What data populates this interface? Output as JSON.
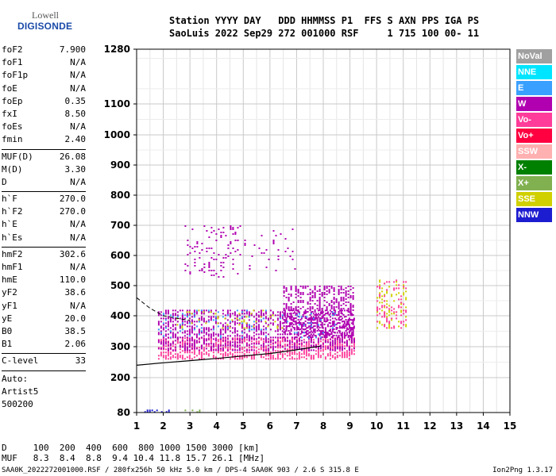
{
  "logo": {
    "line1": "Lowell",
    "line2": "DIGISONDE"
  },
  "header": {
    "labels": "Station YYYY DAY   DDD HHMMSS P1  FFS S AXN PPS IGA PS",
    "values": "SaoLuis 2022 Sep29 272 001000 RSF     1 715 100 00- 11"
  },
  "params": {
    "group1": [
      {
        "k": "foF2",
        "v": "7.900"
      },
      {
        "k": "foF1",
        "v": "N/A"
      },
      {
        "k": "foF1p",
        "v": "N/A"
      },
      {
        "k": "foE",
        "v": "N/A"
      },
      {
        "k": "foEp",
        "v": "0.35"
      },
      {
        "k": "fxI",
        "v": "8.50"
      },
      {
        "k": "foEs",
        "v": "N/A"
      },
      {
        "k": "fmin",
        "v": "2.40"
      }
    ],
    "group2": [
      {
        "k": "MUF(D)",
        "v": "26.08"
      },
      {
        "k": "M(D)",
        "v": "3.30"
      },
      {
        "k": "D",
        "v": "N/A"
      }
    ],
    "group3": [
      {
        "k": "h`F",
        "v": "270.0"
      },
      {
        "k": "h`F2",
        "v": "270.0"
      },
      {
        "k": "h`E",
        "v": "N/A"
      },
      {
        "k": "h`Es",
        "v": "N/A"
      }
    ],
    "group4": [
      {
        "k": "hmF2",
        "v": "302.6"
      },
      {
        "k": "hmF1",
        "v": "N/A"
      },
      {
        "k": "hmE",
        "v": "110.0"
      },
      {
        "k": "yF2",
        "v": "38.6"
      },
      {
        "k": "yF1",
        "v": "N/A"
      },
      {
        "k": "yE",
        "v": "20.0"
      },
      {
        "k": "B0",
        "v": "38.5"
      },
      {
        "k": "B1",
        "v": "2.06"
      }
    ],
    "group5": [
      {
        "k": "C-level",
        "v": "33"
      }
    ],
    "auto": [
      "Auto:",
      "Artist5",
      "500200"
    ]
  },
  "legend": [
    {
      "label": "NoVal",
      "color": "#a0a0a0"
    },
    {
      "label": "NNE",
      "color": "#00e5ff"
    },
    {
      "label": "E",
      "color": "#3aa0ff"
    },
    {
      "label": "W",
      "color": "#b000b0"
    },
    {
      "label": "Vo-",
      "color": "#ff3c9a"
    },
    {
      "label": "Vo+",
      "color": "#ff0040"
    },
    {
      "label": "SSW",
      "color": "#ffb0b0"
    },
    {
      "label": "X-",
      "color": "#008000"
    },
    {
      "label": "X+",
      "color": "#80b050"
    },
    {
      "label": "SSE",
      "color": "#d0d000"
    },
    {
      "label": "NNW",
      "color": "#1c1cd0"
    }
  ],
  "dmuf": {
    "d_line": "D     100  200  400  600  800 1000 1500 3000 [km]",
    "muf_line": "MUF   8.3  8.4  8.8  9.4 10.4 11.8 15.7 26.1 [MHz]"
  },
  "footer": "SAA0K_2022272001000.RSF / 280fx256h 50 kHz 5.0 km / DPS-4 SAA0K 903 / 2.6 S 315.8 E",
  "version": "Ion2Png 1.3.17",
  "chart_data": {
    "type": "scatter",
    "x_ticks": [
      1,
      2,
      3,
      4,
      5,
      6,
      7,
      8,
      9,
      10,
      11,
      12,
      13,
      14,
      15
    ],
    "y_ticks": [
      80,
      200,
      300,
      400,
      500,
      600,
      700,
      800,
      900,
      1000,
      1100,
      1280
    ],
    "xlim": [
      1,
      15
    ],
    "ylim": [
      80,
      1280
    ],
    "grid": true,
    "y_scale": "log-like (virtual height)",
    "profile_curve": [
      [
        1.0,
        240
      ],
      [
        2,
        248
      ],
      [
        3,
        255
      ],
      [
        4,
        262
      ],
      [
        5,
        270
      ],
      [
        6,
        278
      ],
      [
        7,
        290
      ],
      [
        7.9,
        302
      ]
    ],
    "trace_dashed": [
      [
        1.0,
        460
      ],
      [
        1.5,
        425
      ],
      [
        2,
        400
      ],
      [
        2.5,
        392
      ],
      [
        3,
        385
      ]
    ],
    "echo_clusters": [
      {
        "x0": 1.8,
        "x1": 9.2,
        "y0": 260,
        "y1": 330,
        "color": "#ff3c9a",
        "density": 0.55
      },
      {
        "x0": 1.8,
        "x1": 9.2,
        "y0": 290,
        "y1": 420,
        "color": "#b000b0",
        "density": 0.45
      },
      {
        "x0": 6.5,
        "x1": 9.1,
        "y0": 330,
        "y1": 500,
        "color": "#b000b0",
        "density": 0.45
      },
      {
        "x0": 2.5,
        "x1": 6.5,
        "y0": 360,
        "y1": 420,
        "color": "#d0d000",
        "density": 0.08
      },
      {
        "x0": 1.8,
        "x1": 8.5,
        "y0": 330,
        "y1": 420,
        "color": "#3aa0ff",
        "density": 0.06
      },
      {
        "x0": 2.8,
        "x1": 4.8,
        "y0": 530,
        "y1": 700,
        "color": "#b000b0",
        "density": 0.12
      },
      {
        "x0": 4.5,
        "x1": 7.0,
        "y0": 550,
        "y1": 700,
        "color": "#b000b0",
        "density": 0.06
      },
      {
        "x0": 10.0,
        "x1": 11.1,
        "y0": 360,
        "y1": 520,
        "color": "#d0d000",
        "density": 0.18
      },
      {
        "x0": 10.0,
        "x1": 11.1,
        "y0": 360,
        "y1": 520,
        "color": "#ff3c9a",
        "density": 0.15
      },
      {
        "x0": 1.2,
        "x1": 2.2,
        "y0": 82,
        "y1": 90,
        "color": "#1c1cd0",
        "density": 0.5
      },
      {
        "x0": 2.8,
        "x1": 3.4,
        "y0": 82,
        "y1": 90,
        "color": "#80b050",
        "density": 0.4
      }
    ]
  }
}
